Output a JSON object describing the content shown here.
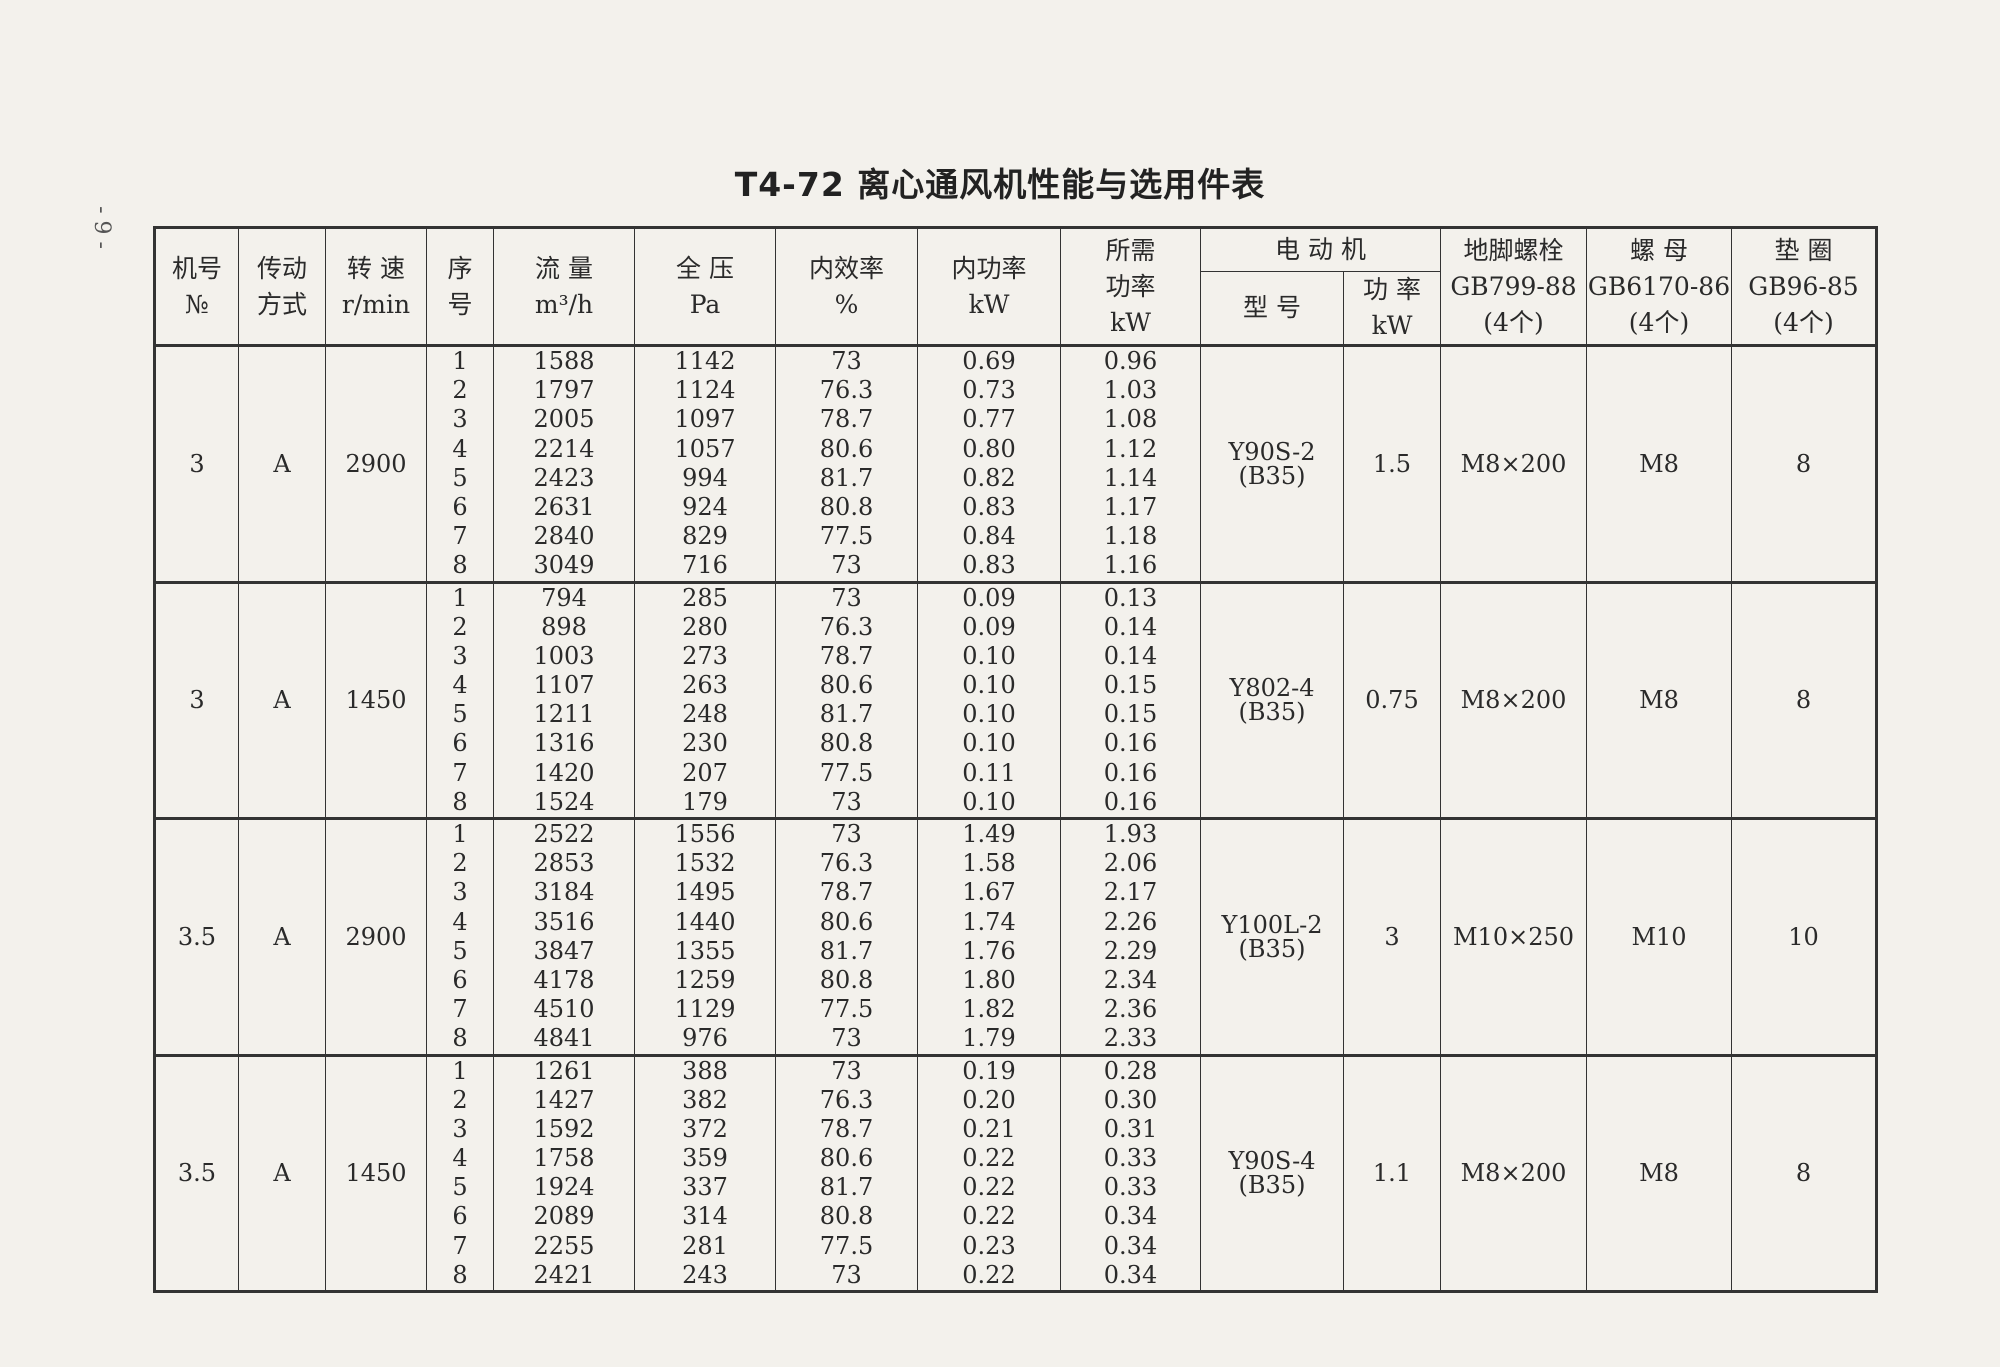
{
  "page_number": "- 9 -",
  "title": "T4-72 离心通风机性能与选用件表",
  "headers": {
    "fan_no": [
      "机号",
      "№"
    ],
    "drive": [
      "传动",
      "方式"
    ],
    "speed": [
      "转 速",
      "r/min"
    ],
    "seq": [
      "序",
      "号"
    ],
    "flow": [
      "流 量",
      "m³/h"
    ],
    "pressure": [
      "全 压",
      "Pa"
    ],
    "efficiency": [
      "内效率",
      "%"
    ],
    "power": [
      "内功率",
      "kW"
    ],
    "required": [
      "所需",
      "功率",
      "kW"
    ],
    "motor": "电 动 机",
    "motor_model": "型 号",
    "motor_kw": [
      "功 率",
      "kW"
    ],
    "bolt": [
      "地脚螺栓",
      "GB799-88",
      "(4个)"
    ],
    "nut": [
      "螺 母",
      "GB6170-86",
      "(4个)"
    ],
    "washer": [
      "垫 圈",
      "GB96-85",
      "(4个)"
    ]
  },
  "groups": [
    {
      "fan_no": "3",
      "drive": "A",
      "speed": "2900",
      "motor_model": "Y90S-2",
      "motor_model_sub": "(B35)",
      "motor_kw": "1.5",
      "bolt": "M8×200",
      "nut": "M8",
      "washer": "8",
      "rows": [
        [
          "1",
          "1588",
          "1142",
          "73",
          "0.69",
          "0.96"
        ],
        [
          "2",
          "1797",
          "1124",
          "76.3",
          "0.73",
          "1.03"
        ],
        [
          "3",
          "2005",
          "1097",
          "78.7",
          "0.77",
          "1.08"
        ],
        [
          "4",
          "2214",
          "1057",
          "80.6",
          "0.80",
          "1.12"
        ],
        [
          "5",
          "2423",
          "994",
          "81.7",
          "0.82",
          "1.14"
        ],
        [
          "6",
          "2631",
          "924",
          "80.8",
          "0.83",
          "1.17"
        ],
        [
          "7",
          "2840",
          "829",
          "77.5",
          "0.84",
          "1.18"
        ],
        [
          "8",
          "3049",
          "716",
          "73",
          "0.83",
          "1.16"
        ]
      ]
    },
    {
      "fan_no": "3",
      "drive": "A",
      "speed": "1450",
      "motor_model": "Y802-4",
      "motor_model_sub": "(B35)",
      "motor_kw": "0.75",
      "bolt": "M8×200",
      "nut": "M8",
      "washer": "8",
      "rows": [
        [
          "1",
          "794",
          "285",
          "73",
          "0.09",
          "0.13"
        ],
        [
          "2",
          "898",
          "280",
          "76.3",
          "0.09",
          "0.14"
        ],
        [
          "3",
          "1003",
          "273",
          "78.7",
          "0.10",
          "0.14"
        ],
        [
          "4",
          "1107",
          "263",
          "80.6",
          "0.10",
          "0.15"
        ],
        [
          "5",
          "1211",
          "248",
          "81.7",
          "0.10",
          "0.15"
        ],
        [
          "6",
          "1316",
          "230",
          "80.8",
          "0.10",
          "0.16"
        ],
        [
          "7",
          "1420",
          "207",
          "77.5",
          "0.11",
          "0.16"
        ],
        [
          "8",
          "1524",
          "179",
          "73",
          "0.10",
          "0.16"
        ]
      ]
    },
    {
      "fan_no": "3.5",
      "drive": "A",
      "speed": "2900",
      "motor_model": "Y100L-2",
      "motor_model_sub": "(B35)",
      "motor_kw": "3",
      "bolt": "M10×250",
      "nut": "M10",
      "washer": "10",
      "rows": [
        [
          "1",
          "2522",
          "1556",
          "73",
          "1.49",
          "1.93"
        ],
        [
          "2",
          "2853",
          "1532",
          "76.3",
          "1.58",
          "2.06"
        ],
        [
          "3",
          "3184",
          "1495",
          "78.7",
          "1.67",
          "2.17"
        ],
        [
          "4",
          "3516",
          "1440",
          "80.6",
          "1.74",
          "2.26"
        ],
        [
          "5",
          "3847",
          "1355",
          "81.7",
          "1.76",
          "2.29"
        ],
        [
          "6",
          "4178",
          "1259",
          "80.8",
          "1.80",
          "2.34"
        ],
        [
          "7",
          "4510",
          "1129",
          "77.5",
          "1.82",
          "2.36"
        ],
        [
          "8",
          "4841",
          "976",
          "73",
          "1.79",
          "2.33"
        ]
      ]
    },
    {
      "fan_no": "3.5",
      "drive": "A",
      "speed": "1450",
      "motor_model": "Y90S-4",
      "motor_model_sub": "(B35)",
      "motor_kw": "1.1",
      "bolt": "M8×200",
      "nut": "M8",
      "washer": "8",
      "rows": [
        [
          "1",
          "1261",
          "388",
          "73",
          "0.19",
          "0.28"
        ],
        [
          "2",
          "1427",
          "382",
          "76.3",
          "0.20",
          "0.30"
        ],
        [
          "3",
          "1592",
          "372",
          "78.7",
          "0.21",
          "0.31"
        ],
        [
          "4",
          "1758",
          "359",
          "80.6",
          "0.22",
          "0.33"
        ],
        [
          "5",
          "1924",
          "337",
          "81.7",
          "0.22",
          "0.33"
        ],
        [
          "6",
          "2089",
          "314",
          "80.8",
          "0.22",
          "0.34"
        ],
        [
          "7",
          "2255",
          "281",
          "77.5",
          "0.23",
          "0.34"
        ],
        [
          "8",
          "2421",
          "243",
          "73",
          "0.22",
          "0.34"
        ]
      ]
    }
  ]
}
